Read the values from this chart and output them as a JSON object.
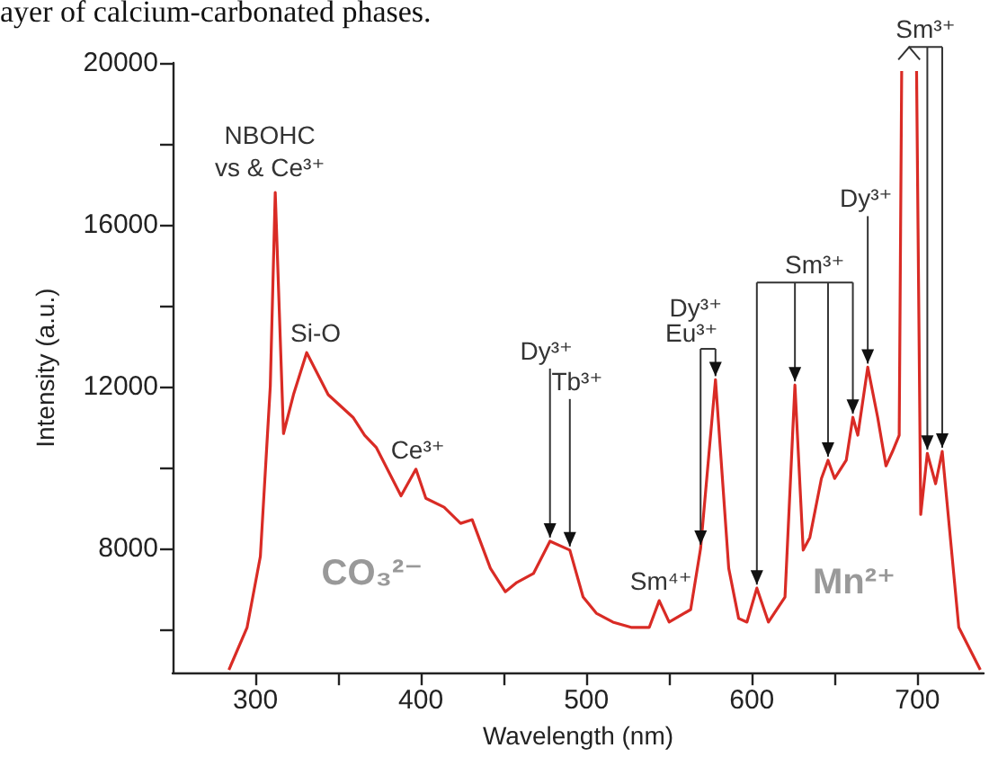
{
  "chart_data": {
    "type": "line",
    "xlabel": "Wavelength (nm)",
    "ylabel": "Intensity (a.u.)",
    "xlim": [
      250,
      740
    ],
    "ylim": [
      4930,
      20000
    ],
    "xticks": [
      300,
      {
        "value": 350,
        "label": null
      },
      400,
      {
        "value": 450,
        "label": null
      },
      500,
      {
        "value": 550,
        "label": null
      },
      600,
      {
        "value": 650,
        "label": null
      },
      700
    ],
    "yticks": [
      {
        "value": 6000,
        "label": null
      },
      8000,
      {
        "value": 10000,
        "label": null
      },
      12000,
      {
        "value": 14000,
        "label": null
      },
      16000,
      {
        "value": 18000,
        "label": null
      },
      20000
    ],
    "series": [
      {
        "color": "#d92b25",
        "x": [
          284,
          295,
          303,
          309,
          312,
          317,
          323,
          331,
          344,
          359,
          366,
          373,
          388,
          397,
          403,
          414,
          424,
          431,
          442,
          451,
          458,
          468,
          478,
          490,
          498,
          506,
          516,
          527,
          538,
          544,
          550,
          563,
          569,
          578,
          586,
          592,
          597,
          603,
          610,
          620,
          626,
          631,
          635,
          642,
          646,
          650,
          657,
          661,
          664,
          670,
          676,
          681,
          685,
          689,
          690.5,
          695,
          699.5,
          702,
          706,
          711,
          715,
          725,
          738
        ],
        "values": [
          5000,
          6050,
          7800,
          12000,
          16800,
          10840,
          11800,
          12840,
          11800,
          11240,
          10800,
          10500,
          9300,
          9960,
          9240,
          9020,
          8620,
          8710,
          7510,
          6930,
          7160,
          7380,
          8180,
          7960,
          6800,
          6400,
          6180,
          6050,
          6050,
          6710,
          6180,
          6490,
          8000,
          12170,
          7510,
          6270,
          6180,
          7020,
          6180,
          6800,
          12040,
          7960,
          8270,
          9730,
          10180,
          9730,
          10180,
          11240,
          10800,
          12480,
          11240,
          10040,
          10400,
          10800,
          19800,
          null,
          19800,
          8840,
          10350,
          9600,
          10400,
          6050,
          5000
        ]
      }
    ],
    "annotations": [
      {
        "text": "NBOHC\nvs & Ce³⁺",
        "x": 312,
        "y": 16800
      },
      {
        "text": "Si-O",
        "x": 331,
        "y": 12840
      },
      {
        "text": "Ce³⁺",
        "x": 397,
        "y": 9960
      },
      "CO₃²⁻",
      {
        "text": "Dy³⁺",
        "x": 478,
        "y": 8180
      },
      {
        "text": "Tb³⁺",
        "x": 490,
        "y": 7960
      },
      {
        "text": "Sm⁴⁺",
        "x": 544,
        "y": 6710
      },
      {
        "text": "Dy³⁺",
        "x": 578,
        "y": 12170
      },
      {
        "text": "Eu³⁺",
        "x": 569,
        "y": 8000
      },
      {
        "text": "Sm³⁺",
        "x": 626,
        "y": 12040
      },
      {
        "text": "Dy³⁺",
        "x": 670,
        "y": 12480
      },
      {
        "text": "Sm³⁺",
        "x": 706,
        "y": 10350
      },
      "Mn²⁺",
      "ayer of calcium-carbonated phases."
    ]
  }
}
